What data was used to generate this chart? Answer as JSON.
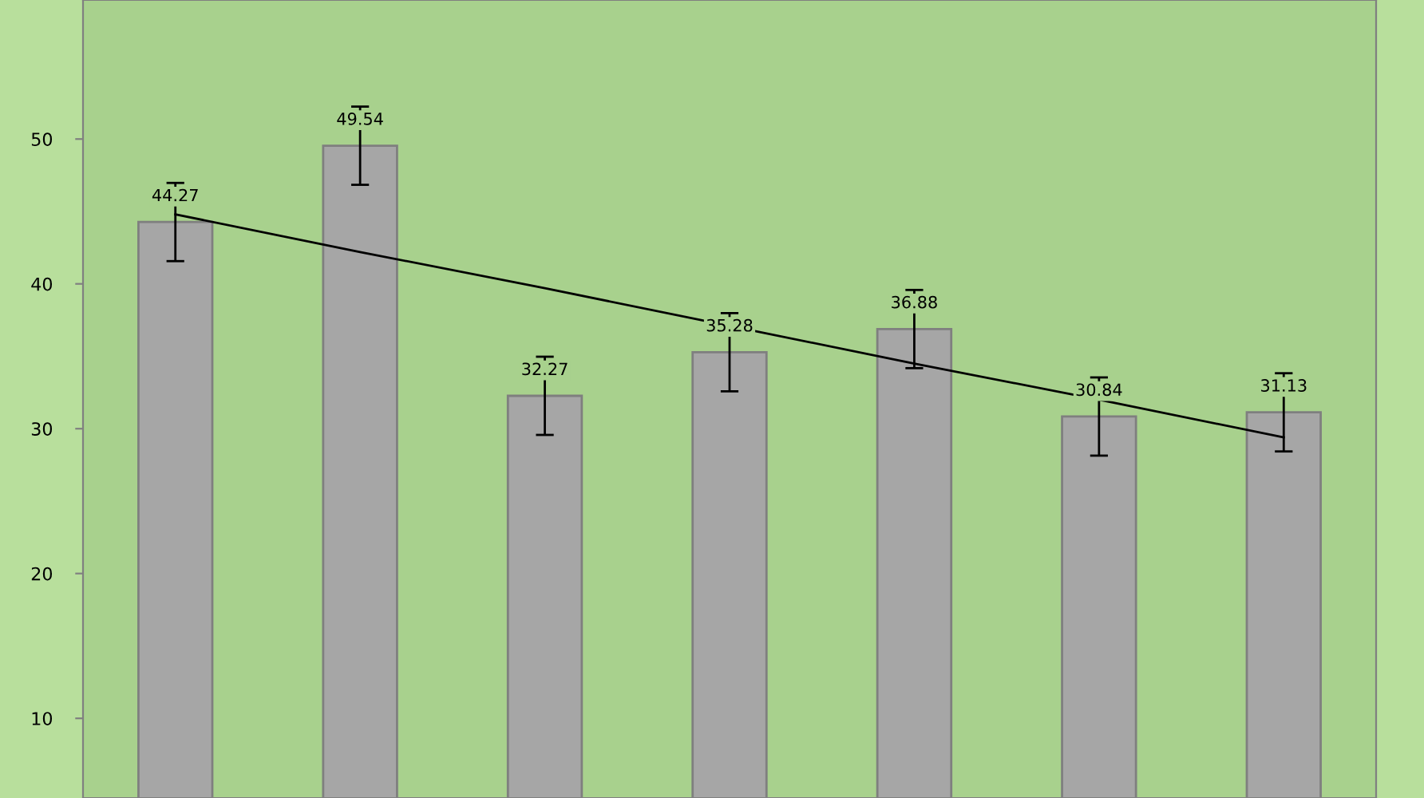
{
  "chart_data": {
    "type": "bar",
    "categories": [
      null,
      null,
      null,
      null,
      null,
      null,
      null
    ],
    "series": [
      {
        "color": "#a6a6a6",
        "values": [
          44.27,
          49.54,
          32.27,
          35.28,
          36.88,
          30.84,
          31.13
        ],
        "errors": [
          2.7,
          2.7,
          2.7,
          2.7,
          2.7,
          2.7,
          2.7
        ],
        "value_labels": [
          "44.27",
          "49.54",
          "32.27",
          "35.28",
          "36.88",
          "30.84",
          "31.13"
        ]
      },
      {
        "type": "line",
        "color": "#000000",
        "values": [
          44.8,
          42.2,
          39.7,
          37.1,
          34.5,
          32.0,
          29.4
        ]
      }
    ],
    "ylim": [
      4.5,
      59.6
    ],
    "yticks": [
      10,
      20,
      30,
      40,
      50
    ],
    "grid": false,
    "legend": false
  }
}
